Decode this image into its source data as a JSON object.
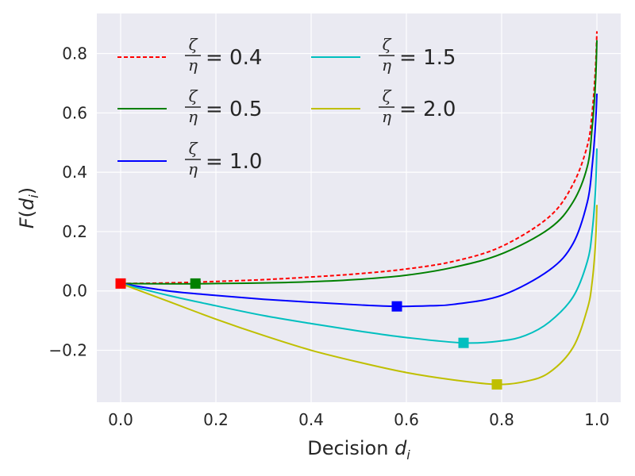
{
  "chart_data": {
    "type": "line",
    "xlabel": "Decision",
    "xlabel_var": "d",
    "xlabel_sub": "i",
    "ylabel_fn": "F(",
    "ylabel_var": "d",
    "ylabel_sub": "i",
    "ylabel_close": ")",
    "xlim": [
      -0.05,
      1.05
    ],
    "ylim": [
      -0.375,
      0.935
    ],
    "xticks": [
      0.0,
      0.2,
      0.4,
      0.6,
      0.8,
      1.0
    ],
    "xtick_labels": [
      "0.0",
      "0.2",
      "0.4",
      "0.6",
      "0.8",
      "1.0"
    ],
    "yticks": [
      -0.2,
      0.0,
      0.2,
      0.4,
      0.6,
      0.8
    ],
    "ytick_labels": [
      "−0.2",
      "0.0",
      "0.2",
      "0.4",
      "0.6",
      "0.8"
    ],
    "grid": true,
    "legend_position": "top-left",
    "legend_columns": 2,
    "series": [
      {
        "name": "ζ/η = 0.4",
        "num": "ζ",
        "den": "η",
        "eq": "= 0.4",
        "color": "#ff0000",
        "dashed": true,
        "x": [
          0.0,
          0.1,
          0.2,
          0.3,
          0.4,
          0.5,
          0.6,
          0.7,
          0.8,
          0.9,
          0.95,
          0.98,
          0.99,
          0.997,
          1.0
        ],
        "y": [
          0.025,
          0.027,
          0.032,
          0.038,
          0.047,
          0.058,
          0.074,
          0.1,
          0.15,
          0.25,
          0.36,
          0.49,
          0.6,
          0.75,
          0.875
        ],
        "marker": [
          0.0,
          0.025
        ]
      },
      {
        "name": "ζ/η = 0.5",
        "num": "ζ",
        "den": "η",
        "eq": "= 0.5",
        "color": "#008000",
        "dashed": false,
        "x": [
          0.0,
          0.1,
          0.157,
          0.2,
          0.3,
          0.4,
          0.5,
          0.6,
          0.7,
          0.8,
          0.9,
          0.95,
          0.98,
          0.99,
          0.997,
          1.0
        ],
        "y": [
          0.025,
          0.024,
          0.024,
          0.025,
          0.027,
          0.031,
          0.039,
          0.053,
          0.08,
          0.125,
          0.21,
          0.3,
          0.42,
          0.55,
          0.7,
          0.845
        ],
        "marker": [
          0.157,
          0.025
        ]
      },
      {
        "name": "ζ/η = 1.0",
        "num": "ζ",
        "den": "η",
        "eq": "= 1.0",
        "color": "#0000ff",
        "dashed": false,
        "x": [
          0.0,
          0.1,
          0.2,
          0.3,
          0.4,
          0.5,
          0.58,
          0.65,
          0.7,
          0.8,
          0.9,
          0.95,
          0.98,
          0.99,
          0.997,
          1.0
        ],
        "y": [
          0.025,
          0.0,
          -0.015,
          -0.028,
          -0.038,
          -0.047,
          -0.052,
          -0.05,
          -0.045,
          -0.015,
          0.07,
          0.16,
          0.3,
          0.42,
          0.56,
          0.665
        ],
        "marker": [
          0.58,
          -0.052
        ]
      },
      {
        "name": "ζ/η = 1.5",
        "num": "ζ",
        "den": "η",
        "eq": "= 1.5",
        "color": "#00bfbf",
        "dashed": false,
        "x": [
          0.0,
          0.1,
          0.2,
          0.3,
          0.4,
          0.5,
          0.6,
          0.72,
          0.8,
          0.85,
          0.9,
          0.95,
          0.98,
          0.99,
          0.997,
          1.0
        ],
        "y": [
          0.025,
          -0.015,
          -0.05,
          -0.083,
          -0.11,
          -0.135,
          -0.157,
          -0.175,
          -0.168,
          -0.15,
          -0.105,
          -0.02,
          0.1,
          0.2,
          0.34,
          0.48
        ],
        "marker": [
          0.72,
          -0.175
        ]
      },
      {
        "name": "ζ/η = 2.0",
        "num": "ζ",
        "den": "η",
        "eq": "= 2.0",
        "color": "#bfbf00",
        "dashed": false,
        "x": [
          0.0,
          0.1,
          0.2,
          0.3,
          0.4,
          0.5,
          0.6,
          0.7,
          0.79,
          0.85,
          0.9,
          0.95,
          0.98,
          0.99,
          0.997,
          1.0
        ],
        "y": [
          0.025,
          -0.035,
          -0.095,
          -0.15,
          -0.2,
          -0.24,
          -0.275,
          -0.3,
          -0.315,
          -0.305,
          -0.275,
          -0.19,
          -0.06,
          0.03,
          0.16,
          0.29
        ],
        "marker": [
          0.79,
          -0.315
        ]
      }
    ]
  }
}
